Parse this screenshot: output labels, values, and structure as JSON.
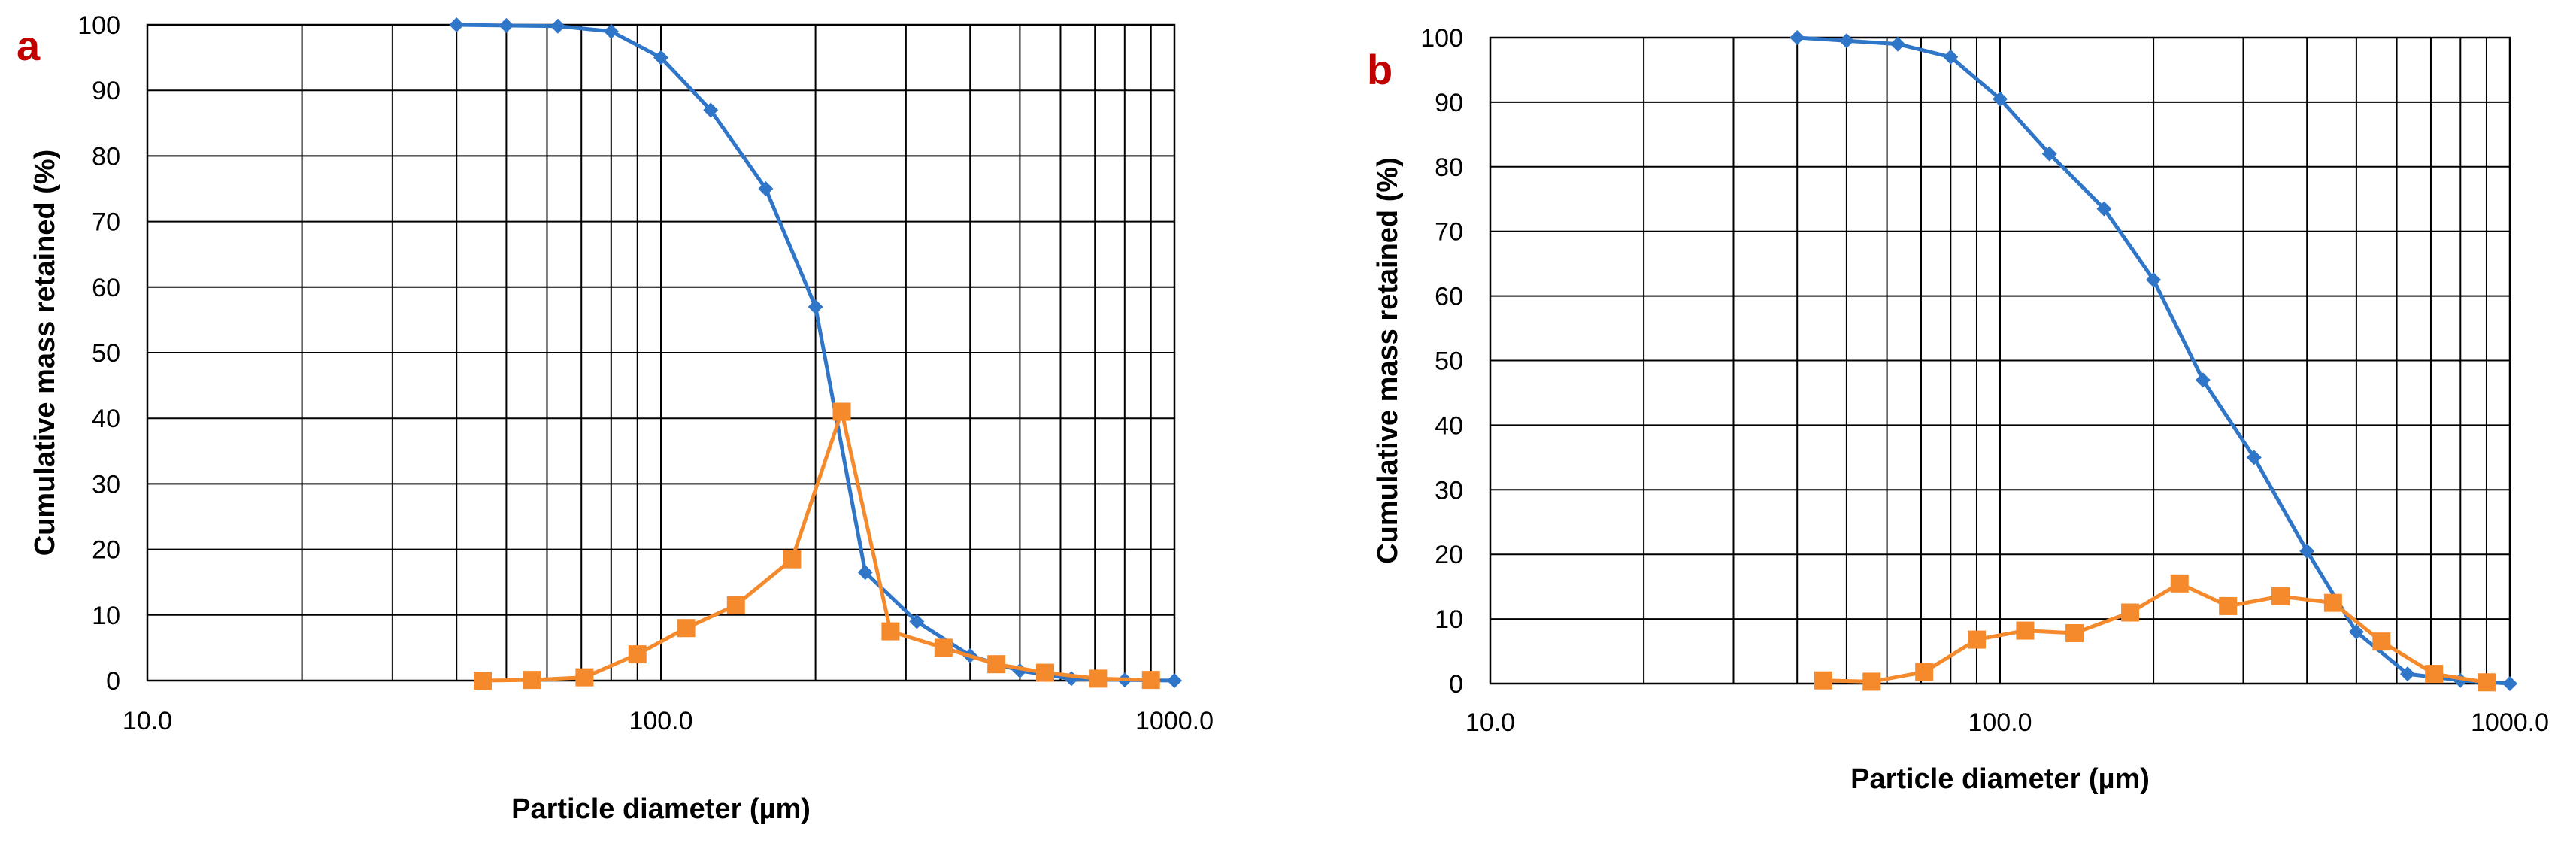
{
  "panels": [
    {
      "letter": "a",
      "accent": "#c00000"
    },
    {
      "letter": "b",
      "accent": "#c00000"
    }
  ],
  "chart_data": [
    {
      "type": "line",
      "xscale": "log",
      "xlim": [
        10,
        1000
      ],
      "ylim": [
        0,
        100
      ],
      "xticks": [
        "10.0",
        "100.0",
        "1000.0"
      ],
      "yticks": [
        "0",
        "10",
        "20",
        "30",
        "40",
        "50",
        "60",
        "70",
        "80",
        "90",
        "100"
      ],
      "xlabel": "Particle diameter (µm)",
      "ylabel": "Cumulative mass retained (%)",
      "grid": true,
      "series": [
        {
          "color": "#2f75c8",
          "marker": "diamond",
          "x": [
            40,
            50,
            63,
            80,
            100,
            125,
            160,
            200,
            250,
            315,
            400,
            500,
            630,
            800,
            1000
          ],
          "y": [
            100,
            99.9,
            99.8,
            99,
            95,
            87,
            75,
            57,
            16.5,
            9,
            3.8,
            1.5,
            0.3,
            0.1,
            0
          ]
        },
        {
          "color": "#f58a2d",
          "marker": "square",
          "x": [
            45,
            56,
            71,
            90,
            112,
            140,
            180,
            225,
            280,
            355,
            450,
            560,
            710,
            900
          ],
          "y": [
            0,
            0.1,
            0.5,
            4,
            8,
            11.5,
            18.5,
            41,
            7.5,
            5,
            2.5,
            1.2,
            0.3,
            0.1
          ]
        }
      ]
    },
    {
      "type": "line",
      "xscale": "log",
      "xlim": [
        10,
        1000
      ],
      "ylim": [
        0,
        100
      ],
      "xticks": [
        "10.0",
        "100.0",
        "1000.0"
      ],
      "yticks": [
        "0",
        "10",
        "20",
        "30",
        "40",
        "50",
        "60",
        "70",
        "80",
        "90",
        "100"
      ],
      "xlabel": "Particle diameter (µm)",
      "ylabel": "Cumulative mass retained (%)",
      "grid": true,
      "series": [
        {
          "color": "#2f75c8",
          "marker": "diamond",
          "x": [
            40,
            50,
            63,
            80,
            100,
            125,
            160,
            200,
            250,
            315,
            400,
            500,
            630,
            800,
            1000
          ],
          "y": [
            100,
            99.5,
            99,
            97,
            90.5,
            82,
            73.5,
            62.5,
            47,
            35,
            20.5,
            8,
            1.5,
            0.5,
            0
          ]
        },
        {
          "color": "#f58a2d",
          "marker": "square",
          "x": [
            45,
            56,
            71,
            90,
            112,
            140,
            180,
            225,
            280,
            355,
            450,
            560,
            710,
            900
          ],
          "y": [
            0.5,
            0.3,
            1.8,
            6.8,
            8.2,
            7.8,
            11,
            15.5,
            12,
            13.5,
            12.5,
            6.5,
            1.5,
            0.2
          ]
        }
      ]
    }
  ]
}
